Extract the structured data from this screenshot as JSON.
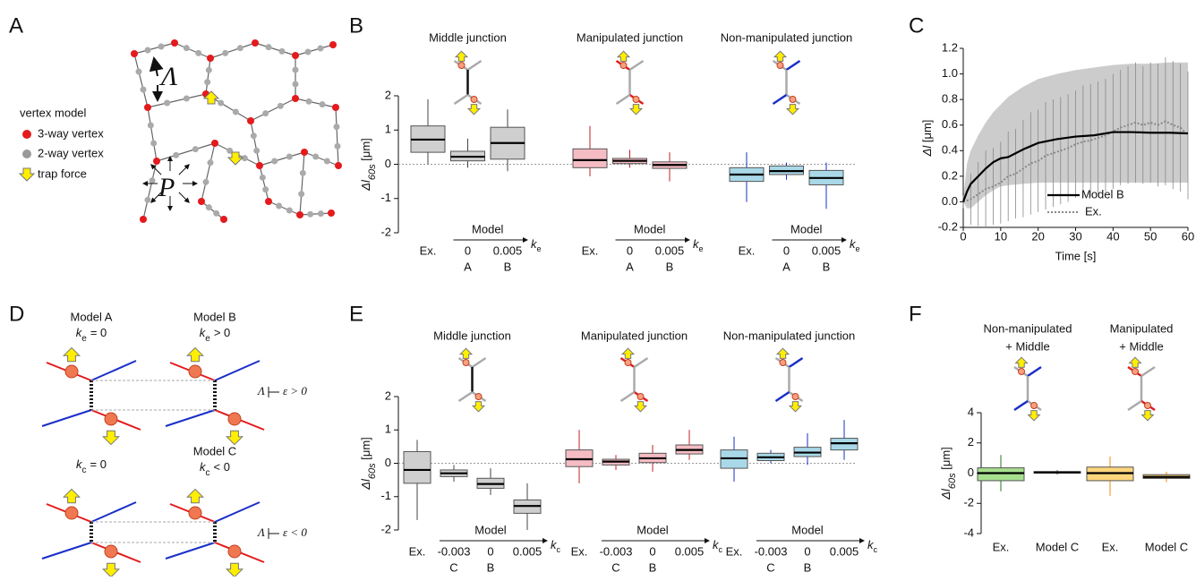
{
  "panel_labels": [
    "A",
    "B",
    "C",
    "D",
    "E",
    "F"
  ],
  "diagram_A": {
    "legend_title": "vertex model",
    "legend": [
      "3-way vertex",
      "2-way vertex",
      "trap force"
    ],
    "tension_symbol": "Λ",
    "pressure_symbol": "P"
  },
  "diagram_D": {
    "models": [
      {
        "name": "Model A",
        "param": "k",
        "sub": "e",
        "cond": "= 0"
      },
      {
        "name": "Model B",
        "param": "k",
        "sub": "e",
        "cond": "> 0"
      },
      {
        "name": null,
        "param": "k",
        "sub": "c",
        "cond": "= 0"
      },
      {
        "name": "Model C",
        "param": "k",
        "sub": "c",
        "cond": "< 0"
      }
    ],
    "relations": [
      {
        "lhs": "Λ",
        "rhs": "ε > 0"
      },
      {
        "lhs": "Λ",
        "rhs": "ε < 0"
      }
    ]
  },
  "chart_data": [
    {
      "type": "box",
      "ylabel": "Δl",
      "ylabel_sub": "60s",
      "ylabel_unit": " [μm]",
      "ylim": [
        -2,
        2
      ],
      "yticks": [
        -2,
        -1,
        0,
        1,
        2
      ],
      "reference_line": 0,
      "model_label": "Model",
      "param": "k",
      "param_sub": "e",
      "groups": [
        {
          "title": "Middle junction",
          "color": "#cfcfcf",
          "edge": "#444",
          "categories": [
            "Ex.",
            "0",
            "0.005"
          ],
          "model_labels": [
            null,
            "A",
            "B"
          ],
          "boxes": [
            {
              "min": 0,
              "q1": 0.35,
              "median": 0.72,
              "q3": 1.12,
              "max": 1.9
            },
            {
              "min": -0.1,
              "q1": 0.1,
              "median": 0.22,
              "q3": 0.38,
              "max": 0.75
            },
            {
              "min": -0.2,
              "q1": 0.15,
              "median": 0.62,
              "q3": 1.08,
              "max": 1.6
            }
          ]
        },
        {
          "title": "Manipulated junction",
          "color": "#f5bcc4",
          "edge": "#c0202a",
          "categories": [
            "Ex.",
            "0",
            "0.005"
          ],
          "model_labels": [
            null,
            "A",
            "B"
          ],
          "boxes": [
            {
              "min": -0.35,
              "q1": -0.1,
              "median": 0.12,
              "q3": 0.45,
              "max": 1.12
            },
            {
              "min": -0.1,
              "q1": 0.02,
              "median": 0.1,
              "q3": 0.17,
              "max": 0.42
            },
            {
              "min": -0.5,
              "q1": -0.12,
              "median": -0.02,
              "q3": 0.07,
              "max": 0.35
            }
          ]
        },
        {
          "title": "Non-manipulated junction",
          "color": "#a9d9e8",
          "edge": "#1a2fc8",
          "categories": [
            "Ex.",
            "0",
            "0.005"
          ],
          "model_labels": [
            null,
            "A",
            "B"
          ],
          "boxes": [
            {
              "min": -1.1,
              "q1": -0.5,
              "median": -0.3,
              "q3": -0.1,
              "max": 0.35
            },
            {
              "min": -0.45,
              "q1": -0.3,
              "median": -0.2,
              "q3": -0.05,
              "max": 0.05
            },
            {
              "min": -1.3,
              "q1": -0.6,
              "median": -0.4,
              "q3": -0.18,
              "max": 0.05
            }
          ]
        }
      ]
    },
    {
      "type": "line",
      "xlabel": "Time [s]",
      "ylabel": "Δl",
      "ylabel_unit": " [μm]",
      "xlim": [
        0,
        60
      ],
      "xticks": [
        0,
        10,
        20,
        30,
        40,
        50,
        60
      ],
      "ylim": [
        -0.2,
        1.2
      ],
      "yticks": [
        -0.2,
        {
          "value": 0,
          "label": "0.0"
        },
        0.2,
        0.4,
        0.6,
        0.8,
        {
          "value": 1,
          "label": "1.0"
        },
        1.2
      ],
      "legend": "lower right",
      "series": [
        {
          "name": "Model B",
          "color": "#000000",
          "band_color": "#cccccc",
          "x": [
            0,
            1,
            2,
            4,
            6,
            8,
            10,
            12,
            16,
            20,
            25,
            30,
            35,
            40,
            45,
            50,
            55,
            60
          ],
          "values": [
            0,
            0.08,
            0.14,
            0.2,
            0.26,
            0.31,
            0.34,
            0.35,
            0.41,
            0.46,
            0.49,
            0.51,
            0.52,
            0.545,
            0.545,
            0.54,
            0.54,
            0.535
          ],
          "band_lower": [
            0,
            -0.05,
            -0.05,
            0,
            0.05,
            0.09,
            0.12,
            0.13,
            0.14,
            0.15,
            0.15,
            0.15,
            0.15,
            0.15,
            0.15,
            0.15,
            0.15,
            0.15
          ],
          "band_upper": [
            0.02,
            0.3,
            0.4,
            0.52,
            0.62,
            0.7,
            0.76,
            0.82,
            0.9,
            0.96,
            1.0,
            1.03,
            1.05,
            1.07,
            1.08,
            1.08,
            1.09,
            1.09
          ]
        },
        {
          "name": "Ex.",
          "color": "#888888",
          "x": [
            0,
            2,
            4,
            6,
            8,
            10,
            12,
            14,
            16,
            18,
            20,
            22,
            24,
            26,
            28,
            30,
            32,
            34,
            36,
            38,
            40,
            42,
            44,
            46,
            48,
            50,
            52,
            54,
            56,
            58,
            60
          ],
          "values": [
            0,
            0.02,
            0.06,
            0.1,
            0.12,
            0.15,
            0.2,
            0.22,
            0.26,
            0.3,
            0.32,
            0.36,
            0.38,
            0.4,
            0.42,
            0.45,
            0.47,
            0.48,
            0.5,
            0.52,
            0.55,
            0.58,
            0.6,
            0.62,
            0.6,
            0.62,
            0.6,
            0.63,
            0.6,
            0.58,
            0.52
          ],
          "errors": [
            0.05,
            0.2,
            0.25,
            0.3,
            0.3,
            0.32,
            0.35,
            0.35,
            0.38,
            0.4,
            0.4,
            0.42,
            0.42,
            0.42,
            0.42,
            0.42,
            0.44,
            0.44,
            0.44,
            0.44,
            0.45,
            0.45,
            0.46,
            0.47,
            0.46,
            0.47,
            0.48,
            0.5,
            0.5,
            0.5,
            0.5
          ]
        }
      ]
    },
    {
      "type": "box",
      "ylabel": "Δl",
      "ylabel_sub": "60s",
      "ylabel_unit": " [μm]",
      "ylim": [
        -2,
        2
      ],
      "yticks": [
        -2,
        -1,
        0,
        1,
        2
      ],
      "reference_line": 0,
      "model_label": "Model",
      "param": "k",
      "param_sub": "c",
      "groups": [
        {
          "title": "Middle junction",
          "color": "#cfcfcf",
          "edge": "#444",
          "categories": [
            "Ex.",
            "-0.003",
            "0",
            "0.005"
          ],
          "model_labels": [
            null,
            "C",
            "B",
            null
          ],
          "boxes": [
            {
              "min": -1.7,
              "q1": -0.6,
              "median": -0.2,
              "q3": 0.35,
              "max": 0.7
            },
            {
              "min": -0.55,
              "q1": -0.4,
              "median": -0.3,
              "q3": -0.2,
              "max": -0.05
            },
            {
              "min": -0.95,
              "q1": -0.75,
              "median": -0.62,
              "q3": -0.45,
              "max": -0.15
            },
            {
              "min": -2,
              "q1": -1.5,
              "median": -1.28,
              "q3": -1.1,
              "max": -0.6
            }
          ]
        },
        {
          "title": "Manipulated junction",
          "color": "#f5bcc4",
          "edge": "#c0202a",
          "categories": [
            "Ex.",
            "-0.003",
            "0",
            "0.005"
          ],
          "model_labels": [
            null,
            "C",
            "B",
            null
          ],
          "boxes": [
            {
              "min": -0.6,
              "q1": -0.1,
              "median": 0.12,
              "q3": 0.4,
              "max": 1.0
            },
            {
              "min": -0.2,
              "q1": -0.05,
              "median": 0.05,
              "q3": 0.12,
              "max": 0.25
            },
            {
              "min": -0.25,
              "q1": 0.02,
              "median": 0.15,
              "q3": 0.3,
              "max": 0.55
            },
            {
              "min": 0.1,
              "q1": 0.28,
              "median": 0.4,
              "q3": 0.55,
              "max": 1.0
            }
          ]
        },
        {
          "title": "Non-manipulated junction",
          "color": "#a9d9e8",
          "edge": "#1a2fc8",
          "categories": [
            "Ex.",
            "-0.003",
            "0",
            "0.005"
          ],
          "model_labels": [
            null,
            "C",
            "B",
            null
          ],
          "boxes": [
            {
              "min": -0.55,
              "q1": -0.15,
              "median": 0.15,
              "q3": 0.4,
              "max": 0.8
            },
            {
              "min": 0,
              "q1": 0.08,
              "median": 0.18,
              "q3": 0.3,
              "max": 0.4
            },
            {
              "min": -0.05,
              "q1": 0.2,
              "median": 0.32,
              "q3": 0.48,
              "max": 0.9
            },
            {
              "min": 0.1,
              "q1": 0.4,
              "median": 0.6,
              "q3": 0.75,
              "max": 1.3
            }
          ]
        }
      ]
    },
    {
      "type": "box",
      "ylabel": "Δl",
      "ylabel_sub": "60s",
      "ylabel_unit": " [μm]",
      "ylim": [
        -4,
        4
      ],
      "yticks": [
        -4,
        -2,
        0,
        2,
        4
      ],
      "groups": [
        {
          "title": "Non-manipulated",
          "subtitle": "+ Middle",
          "color": "#a6e08e",
          "edge": "#1f7a1f",
          "categories": [
            "Ex.",
            "Model C"
          ],
          "boxes": [
            {
              "min": -1.2,
              "q1": -0.5,
              "median": 0,
              "q3": 0.35,
              "max": 1.2
            },
            {
              "min": -0.1,
              "q1": 0,
              "median": 0.05,
              "q3": 0.1,
              "max": 0.2
            }
          ]
        },
        {
          "title": "Manipulated",
          "subtitle": "+ Middle",
          "color": "#fdd57c",
          "edge": "#f08a10",
          "categories": [
            "Ex.",
            "Model C"
          ],
          "boxes": [
            {
              "min": -1.5,
              "q1": -0.5,
              "median": 0,
              "q3": 0.4,
              "max": 1.1
            },
            {
              "min": -0.6,
              "q1": -0.35,
              "median": -0.25,
              "q3": -0.1,
              "max": 0.1
            }
          ]
        }
      ]
    }
  ]
}
